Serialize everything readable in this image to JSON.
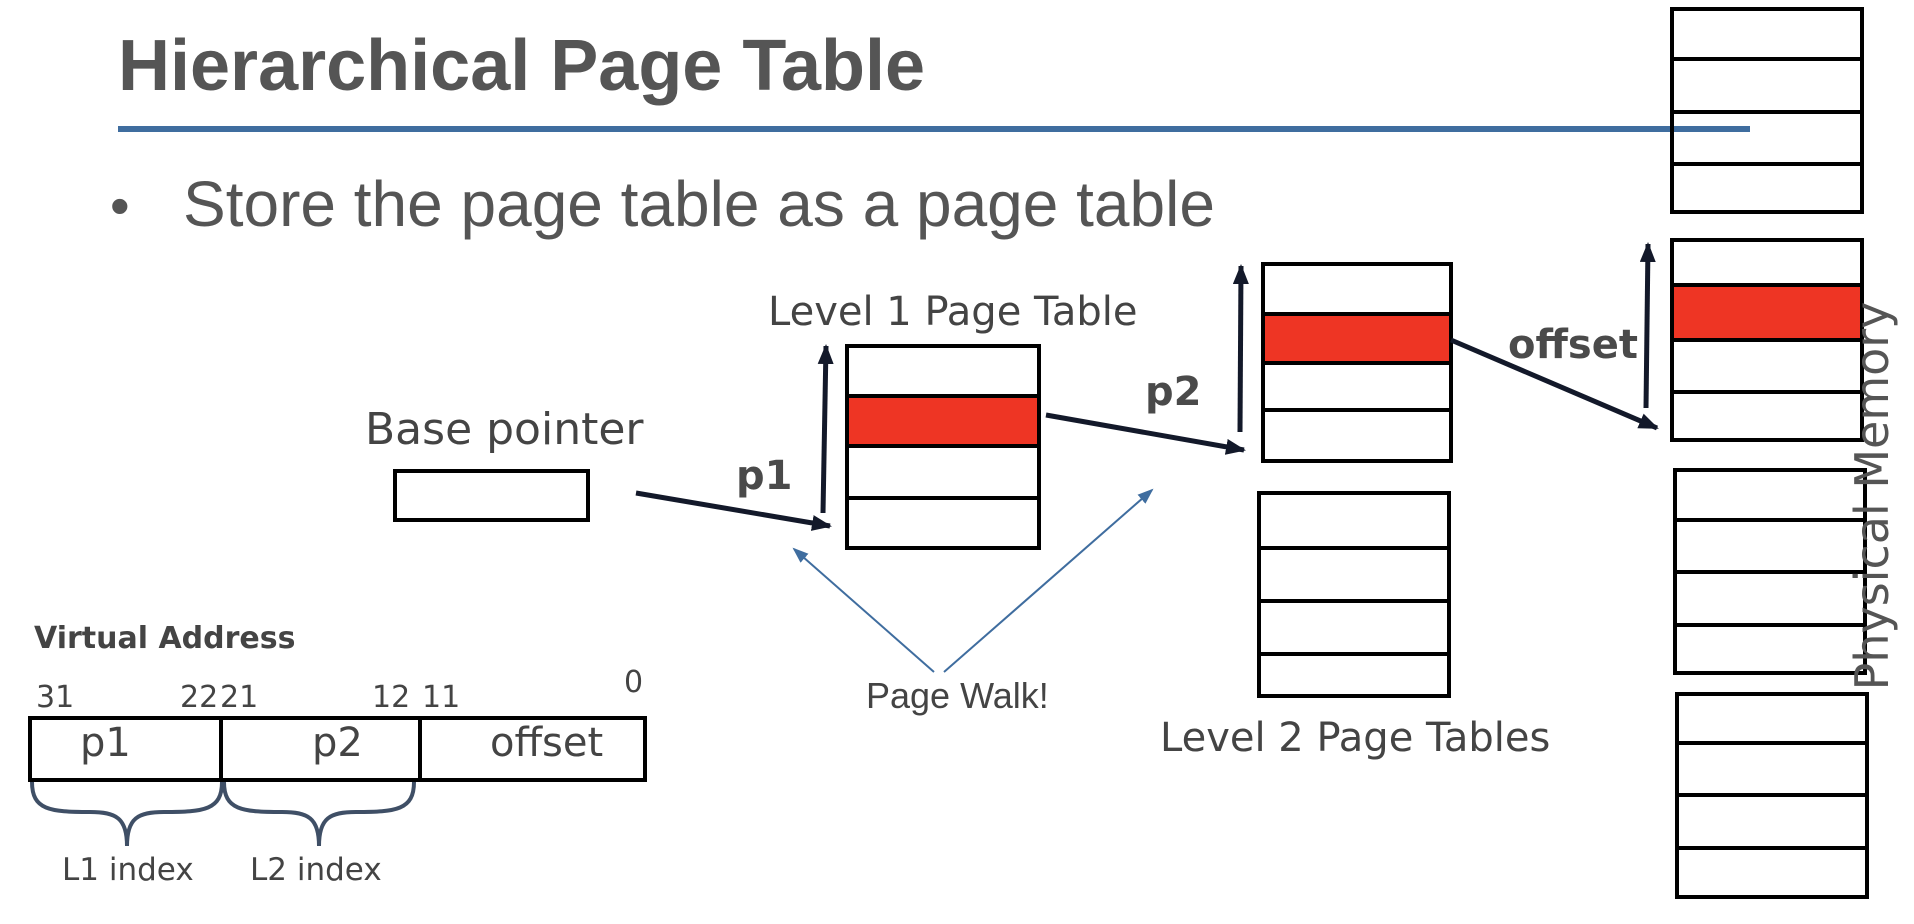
{
  "title": "Hierarchical Page Table",
  "bullets": [
    "Store the page table as a page table"
  ],
  "labels": {
    "level1": "Level 1 Page Table",
    "base_pointer": "Base pointer",
    "level2": "Level 2 Page Tables",
    "physical_memory": "Physical Memory",
    "page_walk": "Page Walk!",
    "p1": "p1",
    "p2": "p2",
    "offset": "offset"
  },
  "virtual_address": {
    "heading": "Virtual Address",
    "bit_labels": [
      "31",
      "22",
      "21",
      "12",
      "11",
      "0"
    ],
    "fields": [
      "p1",
      "p2",
      "offset"
    ],
    "index_labels": [
      "L1 index",
      "L2 index"
    ]
  },
  "colors": {
    "title_text": "#555555",
    "rule": "#3f6d9f",
    "highlight": "#ee3524",
    "arrow_dark": "#13192a",
    "arrow_blue": "#3f6d9f"
  }
}
